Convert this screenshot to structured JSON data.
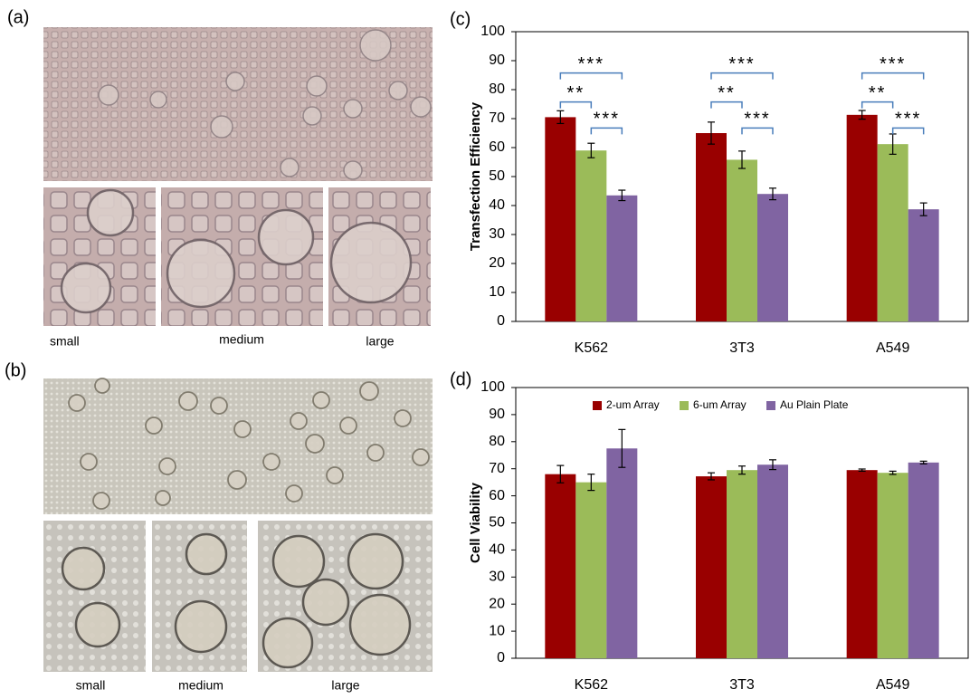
{
  "panel_labels": [
    "(a)",
    "(b)",
    "(c)",
    "(d)"
  ],
  "captions_a": [
    "small",
    "medium",
    "large"
  ],
  "captions_b": [
    "small",
    "medium",
    "large"
  ],
  "chart_data": [
    {
      "type": "bar",
      "y_label": "Transfection Efficiency",
      "categories": [
        "K562",
        "3T3",
        "A549"
      ],
      "series": [
        {
          "color": "#990000",
          "values": [
            70.5,
            65,
            71.3
          ],
          "errors": [
            2.2,
            3.8,
            1.5
          ]
        },
        {
          "color": "#9bbb59",
          "values": [
            59,
            55.8,
            61.2
          ],
          "errors": [
            2.5,
            3,
            3.5
          ]
        },
        {
          "color": "#8064a2",
          "values": [
            43.5,
            44,
            38.7
          ],
          "errors": [
            1.8,
            2,
            2.2
          ]
        }
      ],
      "significance": [
        [
          {
            "text": "***",
            "pair": [
              0,
              2
            ]
          },
          {
            "text": "**",
            "pair": [
              0,
              1
            ]
          },
          {
            "text": "***",
            "pair": [
              1,
              2
            ]
          }
        ],
        [
          {
            "text": "***",
            "pair": [
              0,
              2
            ]
          },
          {
            "text": "**",
            "pair": [
              0,
              1
            ]
          },
          {
            "text": "***",
            "pair": [
              1,
              2
            ]
          }
        ],
        [
          {
            "text": "***",
            "pair": [
              0,
              2
            ]
          },
          {
            "text": "**",
            "pair": [
              0,
              1
            ]
          },
          {
            "text": "***",
            "pair": [
              1,
              2
            ]
          }
        ]
      ],
      "ylim": [
        0,
        100
      ],
      "yticks": [
        0,
        10,
        20,
        30,
        40,
        50,
        60,
        70,
        80,
        90,
        100
      ],
      "grid": false
    },
    {
      "type": "bar",
      "y_label": "Cell Viability",
      "categories": [
        "K562",
        "3T3",
        "A549"
      ],
      "series": [
        {
          "name": "2-um Array",
          "color": "#990000",
          "values": [
            68,
            67.2,
            69.5
          ],
          "errors": [
            3.2,
            1.3,
            0.4
          ]
        },
        {
          "name": "6-um Array",
          "color": "#9bbb59",
          "values": [
            65,
            69.5,
            68.5
          ],
          "errors": [
            3,
            1.5,
            0.6
          ]
        },
        {
          "name": "Au Plain Plate",
          "color": "#8064a2",
          "values": [
            77.5,
            71.5,
            72.3
          ],
          "errors": [
            7,
            1.8,
            0.5
          ]
        }
      ],
      "legend": "top",
      "ylim": [
        0,
        100
      ],
      "yticks": [
        0,
        10,
        20,
        30,
        40,
        50,
        60,
        70,
        80,
        90,
        100
      ],
      "grid": false
    }
  ]
}
